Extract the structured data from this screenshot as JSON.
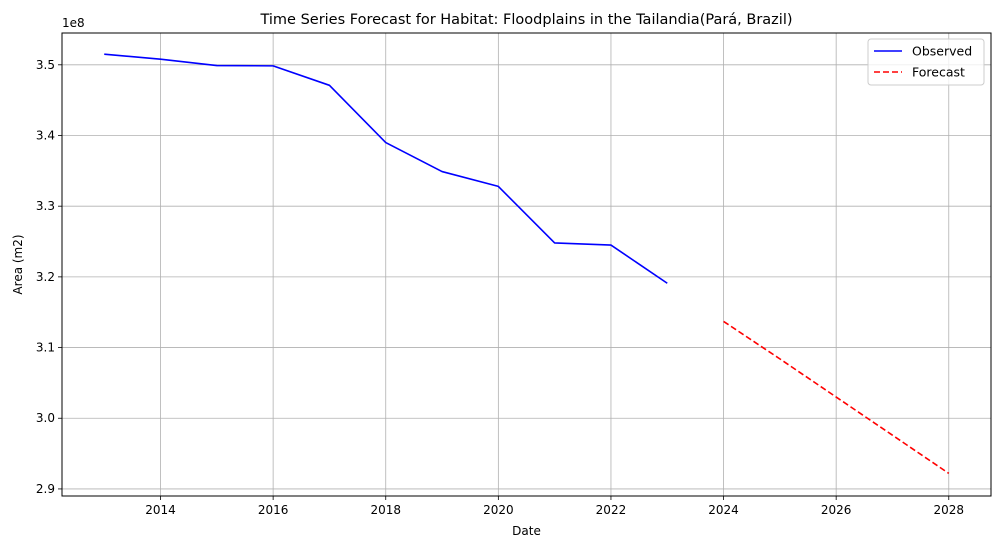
{
  "chart_data": {
    "type": "line",
    "title": "Time Series Forecast for Habitat: Floodplains in the Tailandia(Pará, Brazil)",
    "xlabel": "Date",
    "ylabel": "Area (m2)",
    "y_offset_label": "1e8",
    "xlim": [
      2012.25,
      2028.75
    ],
    "ylim": [
      2.89,
      3.545
    ],
    "x_ticks": [
      2014,
      2016,
      2018,
      2020,
      2022,
      2024,
      2026,
      2028
    ],
    "y_ticks": [
      2.9,
      3.0,
      3.1,
      3.2,
      3.3,
      3.4,
      3.5
    ],
    "y_multiplier": 100000000,
    "grid": true,
    "legend_position": "top-right",
    "series": [
      {
        "name": "Observed",
        "color": "#0000ff",
        "style": "solid",
        "x": [
          2013,
          2014,
          2015,
          2016,
          2017,
          2018,
          2019,
          2020,
          2021,
          2022,
          2023
        ],
        "y": [
          351500000,
          350800000,
          349900000,
          349850000,
          347100000,
          339000000,
          334900000,
          332800000,
          324800000,
          324500000,
          319100000
        ]
      },
      {
        "name": "Forecast",
        "color": "#ff0000",
        "style": "dashed",
        "x": [
          2024,
          2025,
          2026,
          2027,
          2028
        ],
        "y": [
          313700000,
          308400000,
          303000000,
          297600000,
          292200000
        ]
      }
    ]
  }
}
